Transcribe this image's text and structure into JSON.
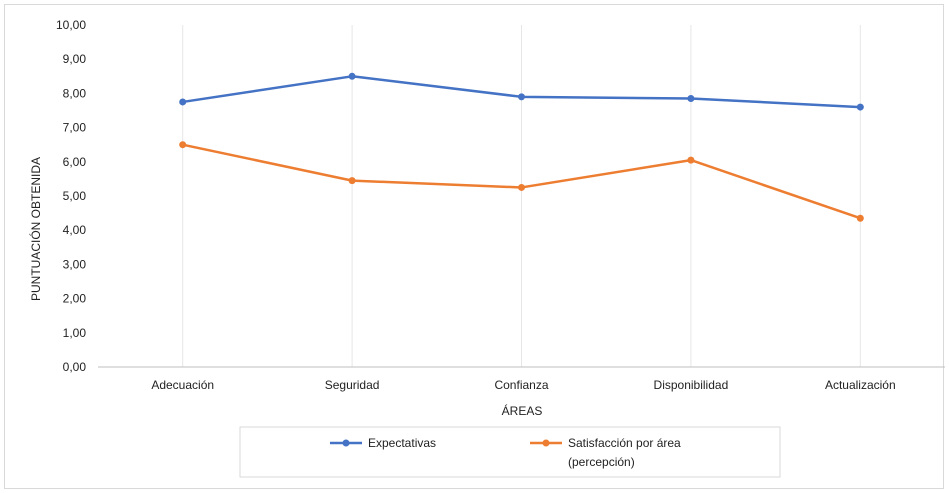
{
  "chart_data": {
    "type": "line",
    "title": "",
    "xlabel": "ÁREAS",
    "ylabel": "PUNTUACIÓN OBTENIDA",
    "ylim": [
      0,
      10
    ],
    "yticks": [
      "0,00",
      "1,00",
      "2,00",
      "3,00",
      "4,00",
      "5,00",
      "6,00",
      "7,00",
      "8,00",
      "9,00",
      "10,00"
    ],
    "categories": [
      "Adecuación",
      "Seguridad",
      "Confianza",
      "Disponibilidad",
      "Actualización"
    ],
    "grid": "vertical",
    "legend_position": "bottom",
    "series": [
      {
        "name": "Expectativas",
        "color": "#4472c4",
        "values": [
          7.75,
          8.5,
          7.9,
          7.85,
          7.6
        ]
      },
      {
        "name_lines": [
          "Satisfacción por área",
          "(percepción)"
        ],
        "color": "#ed7d31",
        "values": [
          6.5,
          5.45,
          5.25,
          6.05,
          4.35
        ]
      }
    ]
  }
}
